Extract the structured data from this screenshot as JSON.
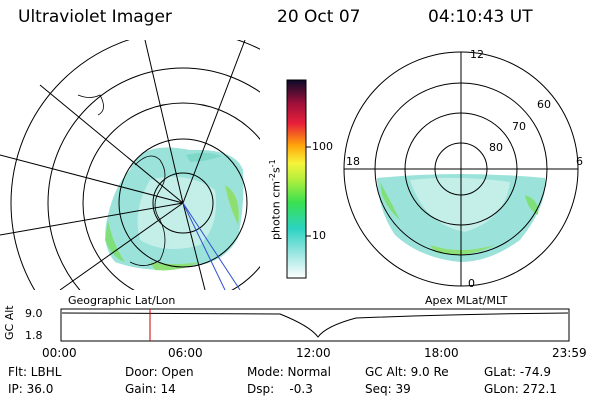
{
  "header": {
    "title": "Ultraviolet Imager",
    "date": "20 Oct 07",
    "time": "04:10:43 UT"
  },
  "left_panel": {
    "caption": "Geographic Lat/Lon"
  },
  "right_panel": {
    "caption": "Apex MLat/MLT",
    "mlt_labels": {
      "top": "12",
      "left": "18",
      "right": "6",
      "bottom": "0"
    },
    "lat_labels": [
      "60",
      "70",
      "80"
    ]
  },
  "colorbar": {
    "unit_label": "photon cm",
    "unit_exp1": "-2",
    "unit_mid": "s",
    "unit_exp2": "-1",
    "tick_100": "100",
    "tick_10": "10"
  },
  "timeline": {
    "axis_label": "GC Alt",
    "y_top": "9.0",
    "y_bottom": "1.8",
    "ticks": [
      "00:00",
      "06:00",
      "12:00",
      "18:00",
      "23:59"
    ],
    "marker_color": "#cc0000"
  },
  "info": {
    "flt": "Flt: LBHL",
    "ip": "IP: 36.0",
    "door": "Door: Open",
    "gain": "Gain: 14",
    "mode": "Mode: Normal",
    "dsp": "Dsp:    -0.3",
    "gcalt": "GC Alt: 9.0 Re",
    "seq": "Seq: 39",
    "glat": "GLat: -74.9",
    "glon": "GLon: 272.1"
  }
}
